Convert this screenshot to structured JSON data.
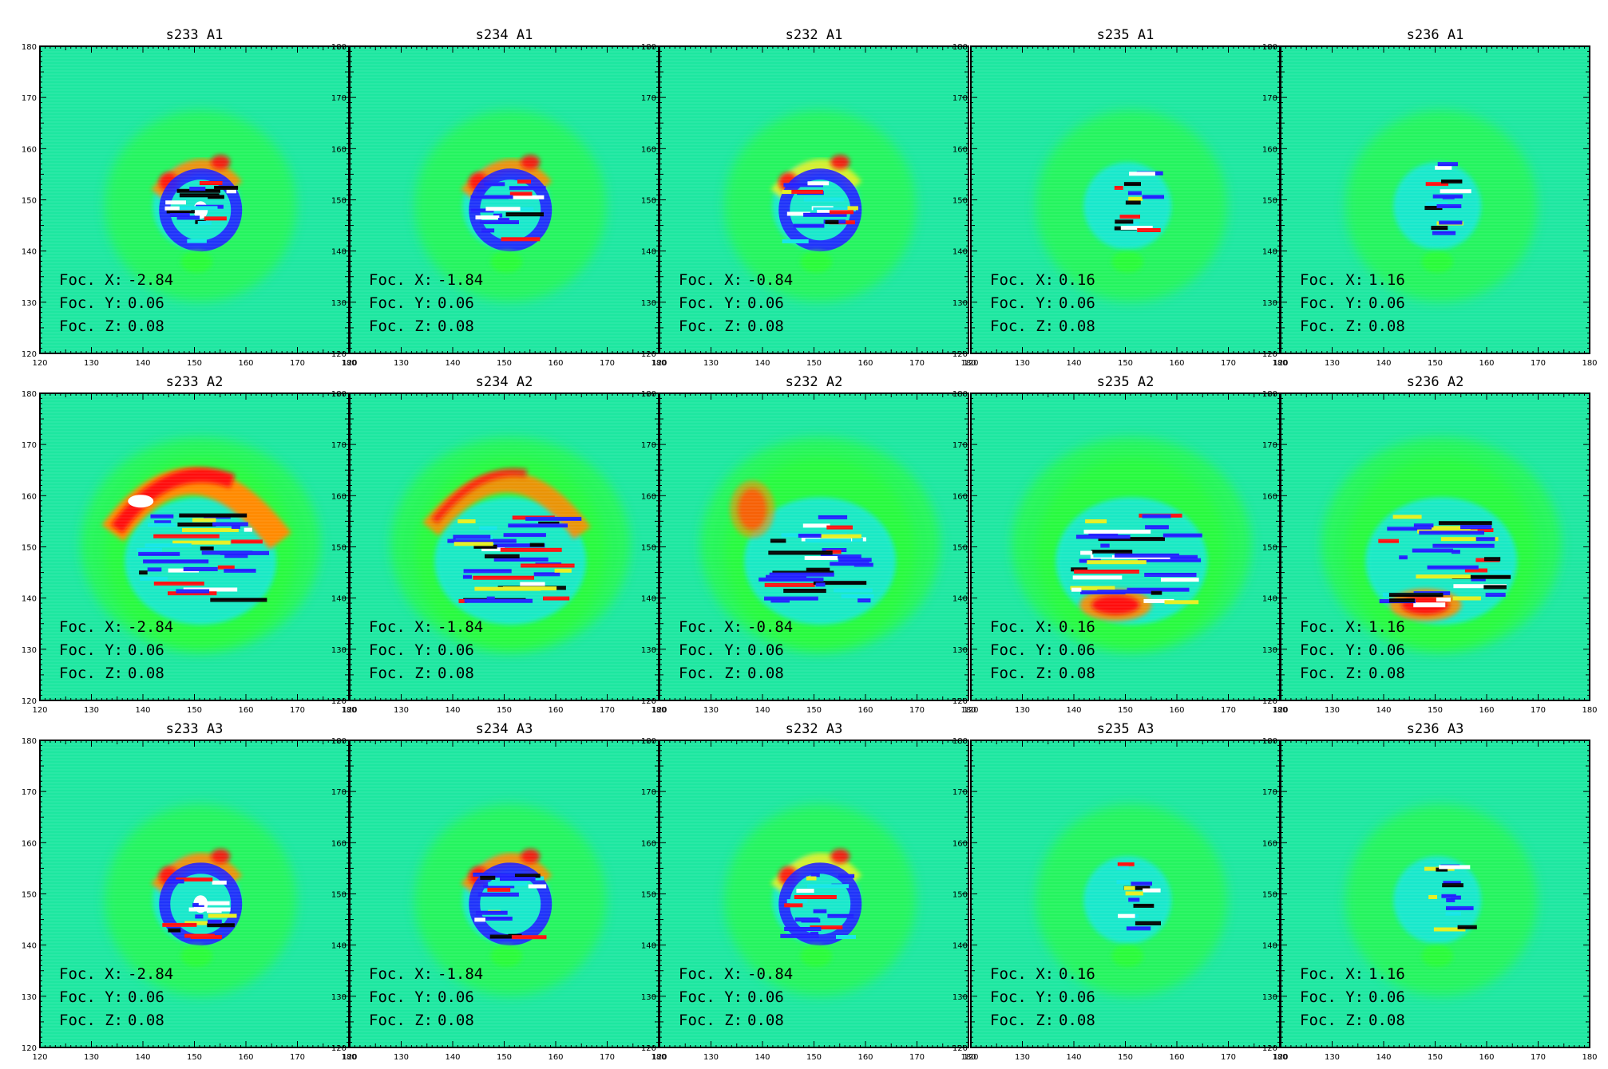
{
  "figure": {
    "rows": [
      {
        "panels": [
          {
            "title": "s233 A1",
            "foc": {
              "x_label": "Foc. X:",
              "x": "-2.84",
              "y_label": "Foc. Y:",
              "y": "0.06",
              "z_label": "Foc. Z:",
              "z": "0.08"
            }
          },
          {
            "title": "s234 A1",
            "foc": {
              "x_label": "Foc. X:",
              "x": "-1.84",
              "y_label": "Foc. Y:",
              "y": "0.06",
              "z_label": "Foc. Z:",
              "z": "0.08"
            }
          },
          {
            "title": "s232 A1",
            "foc": {
              "x_label": "Foc. X:",
              "x": "-0.84",
              "y_label": "Foc. Y:",
              "y": "0.06",
              "z_label": "Foc. Z:",
              "z": "0.08"
            }
          },
          {
            "title": "s235 A1",
            "foc": {
              "x_label": "Foc. X:",
              "x": "0.16",
              "y_label": "Foc. Y:",
              "y": "0.06",
              "z_label": "Foc. Z:",
              "z": "0.08"
            }
          },
          {
            "title": "s236 A1",
            "foc": {
              "x_label": "Foc. X:",
              "x": "1.16",
              "y_label": "Foc. Y:",
              "y": "0.06",
              "z_label": "Foc. Z:",
              "z": "0.08"
            }
          }
        ]
      },
      {
        "panels": [
          {
            "title": "s233 A2",
            "foc": {
              "x_label": "Foc. X:",
              "x": "-2.84",
              "y_label": "Foc. Y:",
              "y": "0.06",
              "z_label": "Foc. Z:",
              "z": "0.08"
            }
          },
          {
            "title": "s234 A2",
            "foc": {
              "x_label": "Foc. X:",
              "x": "-1.84",
              "y_label": "Foc. Y:",
              "y": "0.06",
              "z_label": "Foc. Z:",
              "z": "0.08"
            }
          },
          {
            "title": "s232 A2",
            "foc": {
              "x_label": "Foc. X:",
              "x": "-0.84",
              "y_label": "Foc. Y:",
              "y": "0.06",
              "z_label": "Foc. Z:",
              "z": "0.08"
            }
          },
          {
            "title": "s235 A2",
            "foc": {
              "x_label": "Foc. X:",
              "x": "0.16",
              "y_label": "Foc. Y:",
              "y": "0.06",
              "z_label": "Foc. Z:",
              "z": "0.08"
            }
          },
          {
            "title": "s236 A2",
            "foc": {
              "x_label": "Foc. X:",
              "x": "1.16",
              "y_label": "Foc. Y:",
              "y": "0.06",
              "z_label": "Foc. Z:",
              "z": "0.08"
            }
          }
        ]
      },
      {
        "panels": [
          {
            "title": "s233 A3",
            "foc": {
              "x_label": "Foc. X:",
              "x": "-2.84",
              "y_label": "Foc. Y:",
              "y": "0.06",
              "z_label": "Foc. Z:",
              "z": "0.08"
            }
          },
          {
            "title": "s234 A3",
            "foc": {
              "x_label": "Foc. X:",
              "x": "-1.84",
              "y_label": "Foc. Y:",
              "y": "0.06",
              "z_label": "Foc. Z:",
              "z": "0.08"
            }
          },
          {
            "title": "s232 A3",
            "foc": {
              "x_label": "Foc. X:",
              "x": "-0.84",
              "y_label": "Foc. Y:",
              "y": "0.06",
              "z_label": "Foc. Z:",
              "z": "0.08"
            }
          },
          {
            "title": "s235 A3",
            "foc": {
              "x_label": "Foc. X:",
              "x": "0.16",
              "y_label": "Foc. Y:",
              "y": "0.06",
              "z_label": "Foc. Z:",
              "z": "0.08"
            }
          },
          {
            "title": "s236 A3",
            "foc": {
              "x_label": "Foc. X:",
              "x": "1.16",
              "y_label": "Foc. Y:",
              "y": "0.06",
              "z_label": "Foc. Z:",
              "z": "0.08"
            }
          }
        ]
      }
    ],
    "x_ticks": [
      "120",
      "130",
      "140",
      "150",
      "160",
      "170",
      "180"
    ],
    "y_ticks": [
      "120",
      "130",
      "140",
      "150",
      "160",
      "170",
      "180"
    ],
    "colors": {
      "background": "#1de7a0",
      "black": "#000000",
      "blue": "#2020ff",
      "cyan": "#14e6e6",
      "green": "#2cff2c",
      "yellow": "#e6f020",
      "orange": "#ff8a00",
      "red": "#ff1010",
      "white": "#ffffff"
    }
  }
}
